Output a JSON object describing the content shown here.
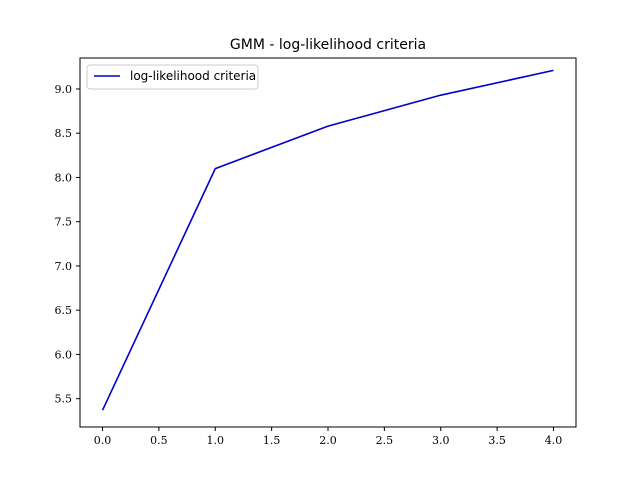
{
  "chart_data": {
    "type": "line",
    "title": "GMM - log-likelihood criteria",
    "xlabel": "",
    "ylabel": "",
    "x": [
      0,
      1,
      2,
      3,
      4
    ],
    "series": [
      {
        "name": "log-likelihood criteria",
        "color": "#0000cc",
        "values": [
          5.37,
          8.1,
          8.58,
          8.93,
          9.21
        ]
      }
    ],
    "xlim": [
      -0.2,
      4.2
    ],
    "ylim": [
      5.18,
      9.35
    ],
    "xticks": [
      0.0,
      0.5,
      1.0,
      1.5,
      2.0,
      2.5,
      3.0,
      3.5,
      4.0
    ],
    "xtick_labels": [
      "0.0",
      "0.5",
      "1.0",
      "1.5",
      "2.0",
      "2.5",
      "3.0",
      "3.5",
      "4.0"
    ],
    "yticks": [
      5.5,
      6.0,
      6.5,
      7.0,
      7.5,
      8.0,
      8.5,
      9.0
    ],
    "ytick_labels": [
      "5.5",
      "6.0",
      "6.5",
      "7.0",
      "7.5",
      "8.0",
      "8.5",
      "9.0"
    ],
    "grid": false,
    "legend_position": "top-left"
  }
}
